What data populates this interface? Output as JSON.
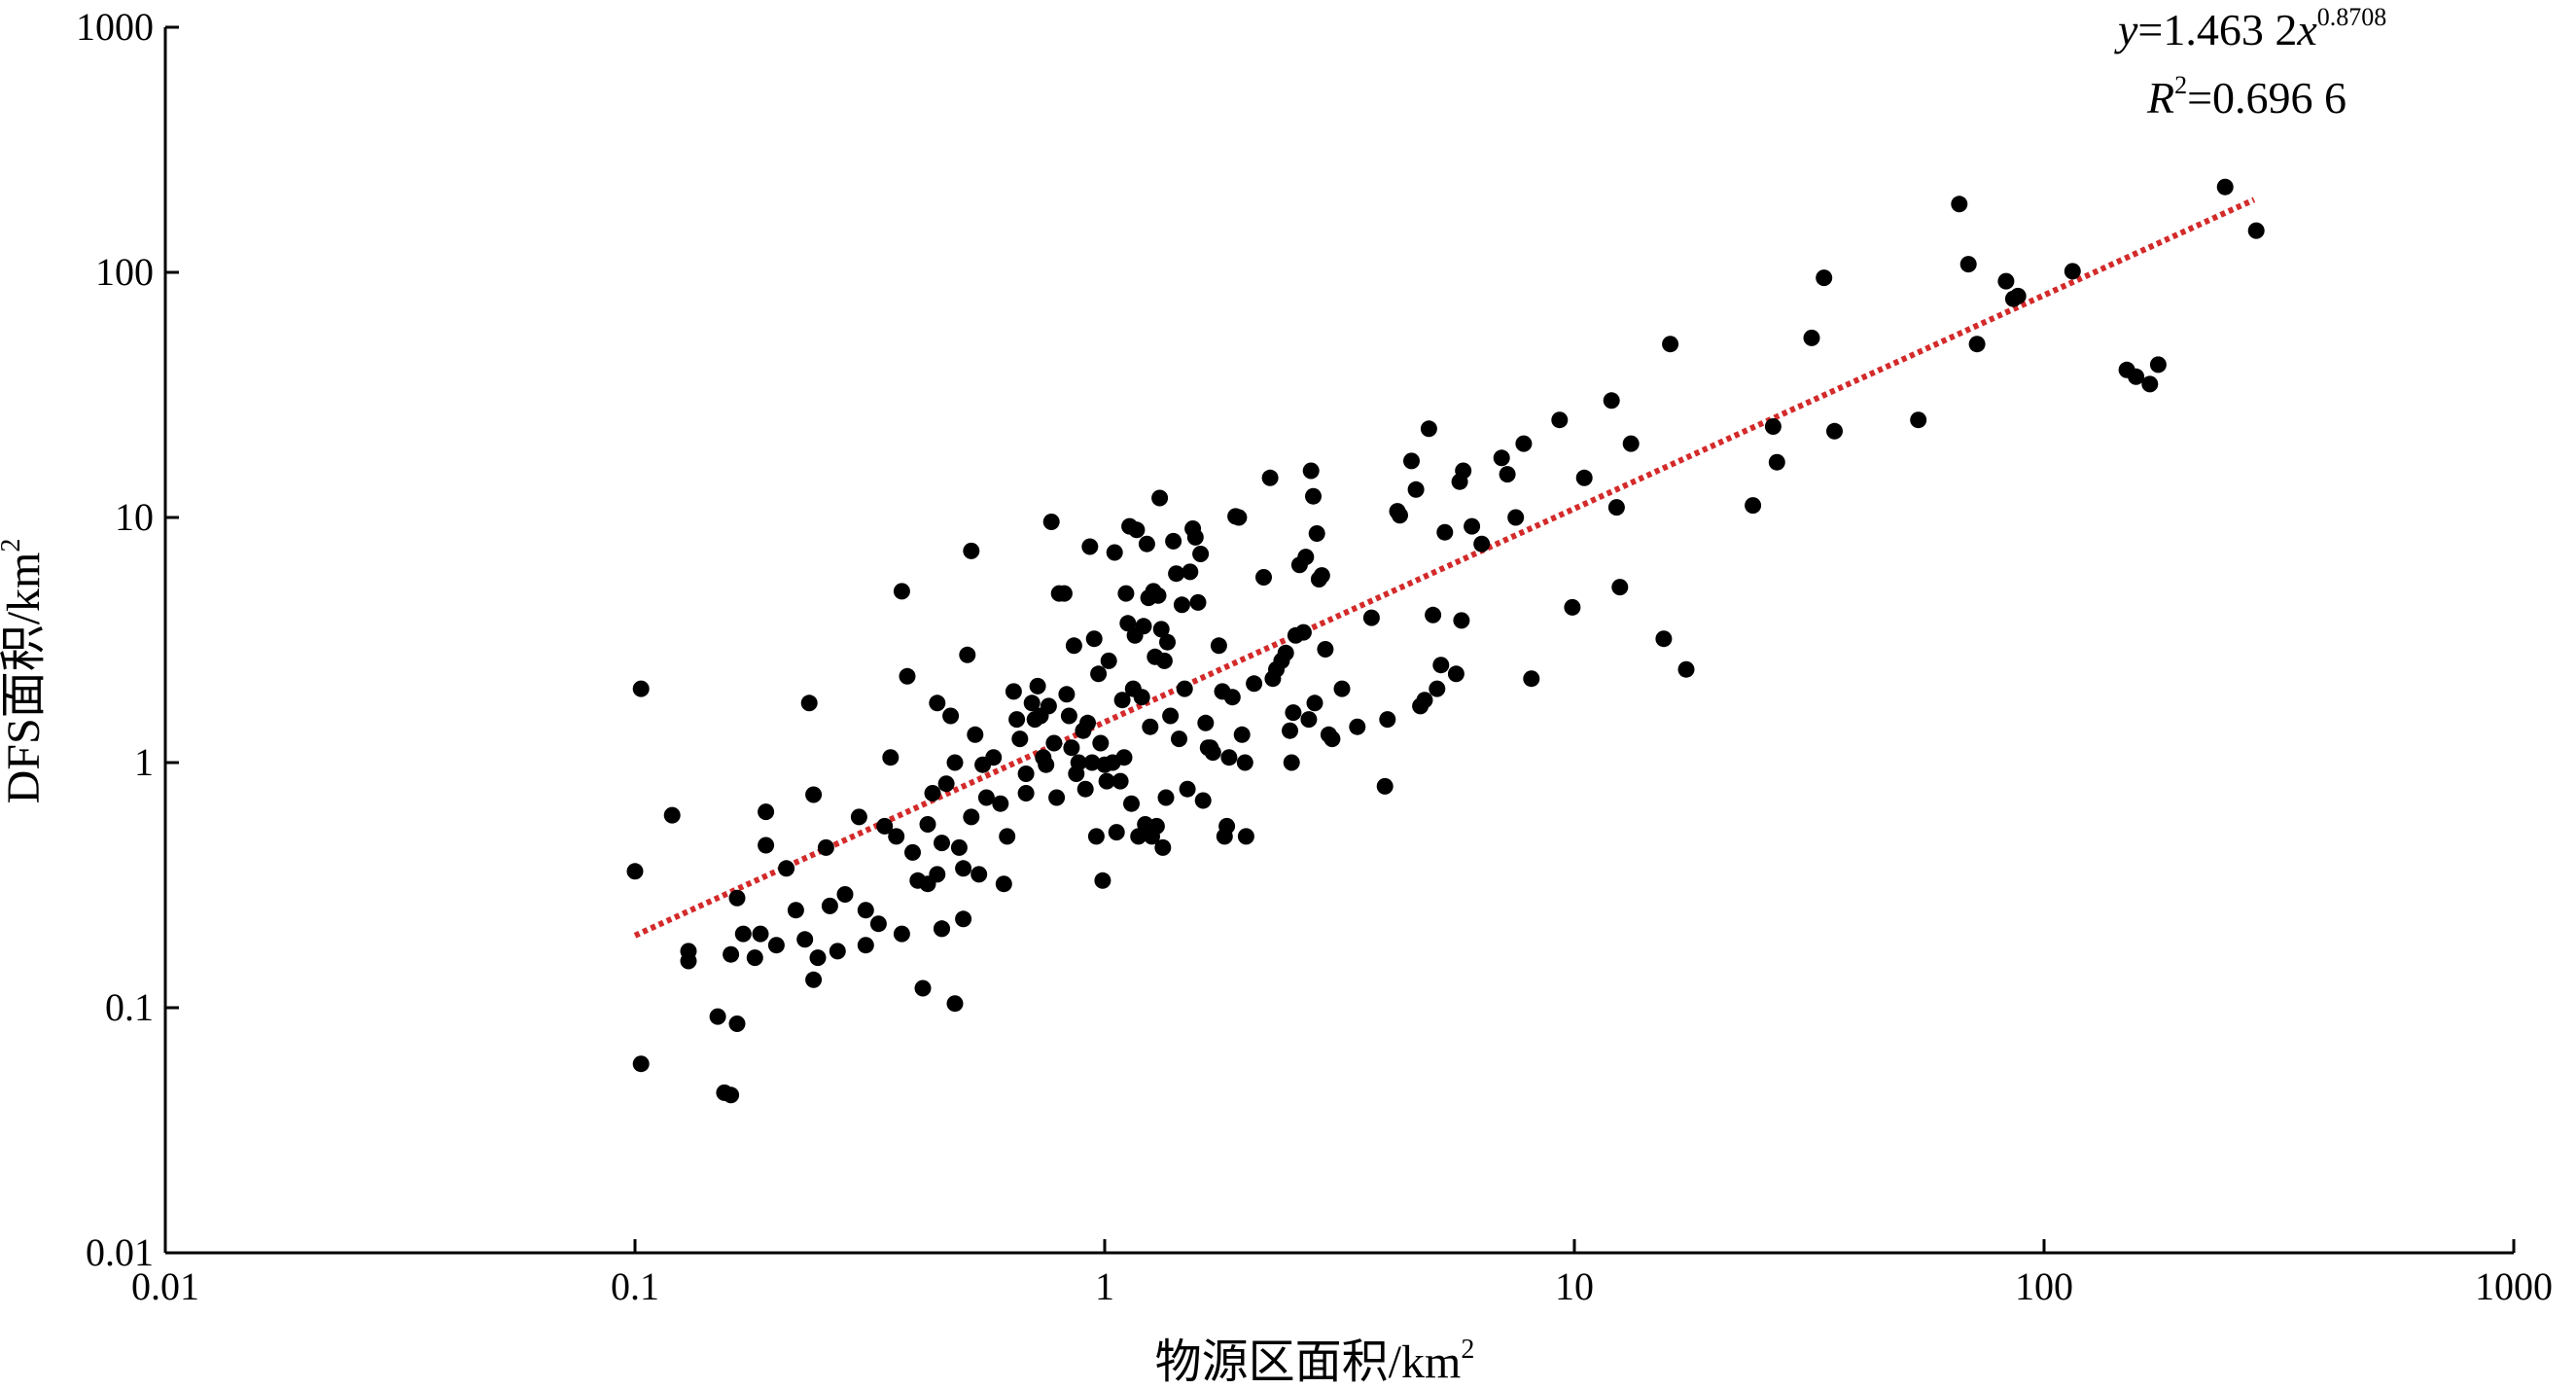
{
  "chart_data": {
    "type": "scatter",
    "x_scale": "log",
    "y_scale": "log",
    "xlim": [
      0.01,
      1000
    ],
    "ylim": [
      0.01,
      1000
    ],
    "x_ticks": [
      "0.01",
      "0.1",
      "1",
      "10",
      "100",
      "1000"
    ],
    "y_ticks": [
      "0.01",
      "0.1",
      "1",
      "10",
      "100",
      "1000"
    ],
    "xlabel": "物源区面积/km",
    "xlabel_sup": "2",
    "ylabel": "DFS面积/km",
    "ylabel_sup": "2",
    "grid": false,
    "point_color": "#000000",
    "trend_color": "#d42a2a",
    "equation": {
      "lhs": "y",
      "eq": "=1.463 2",
      "var": "x",
      "exponent": "0.8708",
      "r_label": "R",
      "r_sup": "2",
      "r_value": "=0.696 6"
    },
    "trendline": {
      "a": 1.4632,
      "b": 0.8708,
      "x_range": [
        0.1,
        280
      ]
    },
    "points": [
      [
        0.1,
        0.36
      ],
      [
        0.103,
        2.0
      ],
      [
        0.103,
        0.059
      ],
      [
        0.12,
        0.61
      ],
      [
        0.13,
        0.17
      ],
      [
        0.13,
        0.155
      ],
      [
        0.15,
        0.092
      ],
      [
        0.155,
        0.045
      ],
      [
        0.16,
        0.044
      ],
      [
        0.16,
        0.165
      ],
      [
        0.165,
        0.28
      ],
      [
        0.165,
        0.086
      ],
      [
        0.17,
        0.2
      ],
      [
        0.18,
        0.16
      ],
      [
        0.185,
        0.2
      ],
      [
        0.19,
        0.63
      ],
      [
        0.19,
        0.46
      ],
      [
        0.2,
        0.18
      ],
      [
        0.21,
        0.37
      ],
      [
        0.22,
        0.25
      ],
      [
        0.23,
        0.19
      ],
      [
        0.235,
        1.75
      ],
      [
        0.24,
        0.74
      ],
      [
        0.24,
        0.13
      ],
      [
        0.245,
        0.16
      ],
      [
        0.255,
        0.45
      ],
      [
        0.26,
        0.26
      ],
      [
        0.27,
        0.17
      ],
      [
        0.28,
        0.29
      ],
      [
        0.3,
        0.6
      ],
      [
        0.31,
        0.25
      ],
      [
        0.31,
        0.18
      ],
      [
        0.33,
        0.22
      ],
      [
        0.34,
        0.55
      ],
      [
        0.35,
        1.05
      ],
      [
        0.36,
        0.5
      ],
      [
        0.37,
        5.0
      ],
      [
        0.37,
        0.2
      ],
      [
        0.38,
        2.25
      ],
      [
        0.39,
        0.43
      ],
      [
        0.4,
        0.33
      ],
      [
        0.41,
        0.12
      ],
      [
        0.42,
        0.56
      ],
      [
        0.42,
        0.32
      ],
      [
        0.43,
        0.75
      ],
      [
        0.44,
        1.75
      ],
      [
        0.44,
        0.35
      ],
      [
        0.45,
        0.21
      ],
      [
        0.45,
        0.47
      ],
      [
        0.45,
        0.21
      ],
      [
        0.46,
        0.82
      ],
      [
        0.47,
        1.55
      ],
      [
        0.48,
        1.0
      ],
      [
        0.48,
        0.104
      ],
      [
        0.49,
        0.45
      ],
      [
        0.5,
        0.37
      ],
      [
        0.5,
        0.23
      ],
      [
        0.51,
        2.75
      ],
      [
        0.52,
        7.3
      ],
      [
        0.52,
        0.6
      ],
      [
        0.53,
        1.3
      ],
      [
        0.54,
        0.35
      ],
      [
        0.55,
        0.98
      ],
      [
        0.56,
        0.72
      ],
      [
        0.58,
        1.05
      ],
      [
        0.6,
        0.68
      ],
      [
        0.61,
        0.32
      ],
      [
        0.62,
        0.5
      ],
      [
        0.64,
        1.95
      ],
      [
        0.65,
        1.5
      ],
      [
        0.66,
        1.25
      ],
      [
        0.68,
        0.9
      ],
      [
        0.68,
        0.75
      ],
      [
        0.7,
        1.75
      ],
      [
        0.71,
        1.5
      ],
      [
        0.72,
        2.05
      ],
      [
        0.73,
        1.55
      ],
      [
        0.74,
        1.05
      ],
      [
        0.75,
        0.98
      ],
      [
        0.76,
        1.7
      ],
      [
        0.77,
        9.6
      ],
      [
        0.78,
        1.2
      ],
      [
        0.79,
        0.72
      ],
      [
        0.8,
        4.9
      ],
      [
        0.82,
        4.9
      ],
      [
        0.83,
        1.9
      ],
      [
        0.84,
        1.55
      ],
      [
        0.85,
        1.15
      ],
      [
        0.86,
        3.0
      ],
      [
        0.87,
        0.9
      ],
      [
        0.88,
        1.0
      ],
      [
        0.9,
        1.35
      ],
      [
        0.91,
        0.78
      ],
      [
        0.92,
        1.45
      ],
      [
        0.93,
        7.6
      ],
      [
        0.94,
        1.0
      ],
      [
        0.95,
        3.2
      ],
      [
        0.96,
        0.5
      ],
      [
        0.97,
        2.3
      ],
      [
        0.98,
        1.2
      ],
      [
        0.99,
        0.33
      ],
      [
        1.0,
        0.98
      ],
      [
        1.01,
        0.84
      ],
      [
        1.02,
        2.6
      ],
      [
        1.04,
        1.0
      ],
      [
        1.05,
        7.2
      ],
      [
        1.06,
        0.52
      ],
      [
        1.08,
        0.84
      ],
      [
        1.09,
        1.8
      ],
      [
        1.1,
        1.05
      ],
      [
        1.11,
        4.9
      ],
      [
        1.12,
        3.7
      ],
      [
        1.13,
        9.2
      ],
      [
        1.14,
        0.68
      ],
      [
        1.15,
        2.0
      ],
      [
        1.16,
        3.3
      ],
      [
        1.17,
        8.9
      ],
      [
        1.18,
        0.5
      ],
      [
        1.2,
        1.85
      ],
      [
        1.21,
        3.6
      ],
      [
        1.22,
        0.56
      ],
      [
        1.23,
        7.8
      ],
      [
        1.24,
        4.7
      ],
      [
        1.25,
        1.4
      ],
      [
        1.26,
        0.5
      ],
      [
        1.27,
        5.0
      ],
      [
        1.28,
        2.7
      ],
      [
        1.29,
        0.55
      ],
      [
        1.3,
        4.8
      ],
      [
        1.31,
        12.0
      ],
      [
        1.32,
        3.5
      ],
      [
        1.33,
        0.45
      ],
      [
        1.34,
        2.6
      ],
      [
        1.35,
        0.72
      ],
      [
        1.36,
        3.1
      ],
      [
        1.38,
        1.55
      ],
      [
        1.4,
        8.0
      ],
      [
        1.42,
        5.9
      ],
      [
        1.44,
        1.25
      ],
      [
        1.46,
        4.4
      ],
      [
        1.48,
        2.0
      ],
      [
        1.5,
        0.78
      ],
      [
        1.52,
        6.0
      ],
      [
        1.54,
        9.0
      ],
      [
        1.56,
        8.3
      ],
      [
        1.58,
        4.5
      ],
      [
        1.6,
        7.1
      ],
      [
        1.62,
        0.7
      ],
      [
        1.64,
        1.45
      ],
      [
        1.66,
        1.15
      ],
      [
        1.68,
        1.15
      ],
      [
        1.7,
        1.1
      ],
      [
        1.75,
        3.0
      ],
      [
        1.78,
        1.95
      ],
      [
        1.8,
        0.5
      ],
      [
        1.82,
        0.55
      ],
      [
        1.84,
        1.05
      ],
      [
        1.87,
        1.85
      ],
      [
        1.9,
        10.1
      ],
      [
        1.93,
        10.0
      ],
      [
        1.96,
        1.3
      ],
      [
        1.99,
        1.0
      ],
      [
        2.0,
        0.5
      ],
      [
        2.08,
        2.1
      ],
      [
        2.18,
        5.7
      ],
      [
        2.25,
        14.5
      ],
      [
        2.28,
        2.2
      ],
      [
        2.32,
        2.4
      ],
      [
        2.38,
        2.6
      ],
      [
        2.43,
        2.8
      ],
      [
        2.48,
        1.35
      ],
      [
        2.5,
        1.0
      ],
      [
        2.52,
        1.6
      ],
      [
        2.55,
        3.3
      ],
      [
        2.6,
        6.4
      ],
      [
        2.65,
        3.4
      ],
      [
        2.68,
        6.9
      ],
      [
        2.72,
        1.5
      ],
      [
        2.75,
        15.5
      ],
      [
        2.78,
        12.2
      ],
      [
        2.8,
        1.75
      ],
      [
        2.83,
        8.6
      ],
      [
        2.86,
        5.6
      ],
      [
        2.9,
        5.8
      ],
      [
        2.95,
        2.9
      ],
      [
        3.0,
        1.3
      ],
      [
        3.05,
        1.25
      ],
      [
        3.2,
        2.0
      ],
      [
        3.45,
        1.4
      ],
      [
        3.7,
        3.9
      ],
      [
        3.95,
        0.8
      ],
      [
        4.0,
        1.5
      ],
      [
        4.2,
        10.6
      ],
      [
        4.25,
        10.2
      ],
      [
        4.5,
        17.0
      ],
      [
        4.6,
        13.0
      ],
      [
        4.7,
        1.7
      ],
      [
        4.8,
        1.8
      ],
      [
        4.9,
        23.0
      ],
      [
        5.0,
        4.0
      ],
      [
        5.1,
        2.0
      ],
      [
        5.2,
        2.5
      ],
      [
        5.3,
        8.7
      ],
      [
        5.6,
        2.3
      ],
      [
        5.7,
        14.0
      ],
      [
        5.75,
        3.8
      ],
      [
        5.8,
        15.5
      ],
      [
        6.05,
        9.2
      ],
      [
        6.35,
        7.8
      ],
      [
        7.0,
        17.5
      ],
      [
        7.2,
        15.0
      ],
      [
        7.5,
        10.0
      ],
      [
        7.8,
        20.0
      ],
      [
        8.1,
        2.2
      ],
      [
        9.3,
        25.0
      ],
      [
        9.9,
        4.3
      ],
      [
        10.5,
        14.5
      ],
      [
        12.0,
        30.0
      ],
      [
        12.3,
        11.0
      ],
      [
        12.5,
        5.2
      ],
      [
        13.2,
        20.0
      ],
      [
        15.5,
        3.2
      ],
      [
        16.0,
        51.0
      ],
      [
        17.3,
        2.4
      ],
      [
        24.0,
        11.2
      ],
      [
        26.5,
        23.5
      ],
      [
        27.0,
        16.8
      ],
      [
        32.0,
        54.0
      ],
      [
        34.0,
        95.0
      ],
      [
        35.8,
        22.5
      ],
      [
        54.0,
        25.0
      ],
      [
        66.0,
        190.0
      ],
      [
        69.0,
        108.0
      ],
      [
        72.0,
        51.0
      ],
      [
        83.0,
        92.0
      ],
      [
        86.0,
        78.0
      ],
      [
        88.0,
        80.0
      ],
      [
        115.0,
        101.0
      ],
      [
        150.0,
        40.0
      ],
      [
        157.0,
        37.5
      ],
      [
        168.0,
        35.0
      ],
      [
        175.0,
        42.0
      ],
      [
        243.0,
        223.0
      ],
      [
        283.0,
        148.0
      ]
    ]
  }
}
